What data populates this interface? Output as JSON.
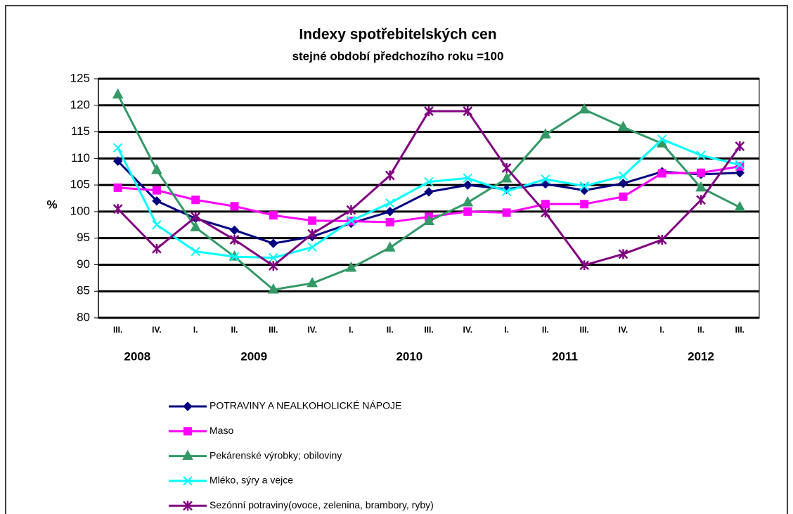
{
  "chart_data": {
    "type": "line",
    "title": "Indexy spotřebitelských  cen",
    "subtitle": "stejné období předchozího roku =100",
    "y_label": "%",
    "categories": [
      "III.",
      "IV.",
      "I.",
      "II.",
      "III.",
      "IV.",
      "I.",
      "II.",
      "III.",
      "IV.",
      "I.",
      "II.",
      "III.",
      "IV.",
      "I.",
      "II.",
      "III."
    ],
    "x_groups": [
      {
        "label": "2008",
        "span": 2
      },
      {
        "label": "2009",
        "span": 4
      },
      {
        "label": "2010",
        "span": 4
      },
      {
        "label": "2011",
        "span": 4
      },
      {
        "label": "2012",
        "span": 3
      }
    ],
    "ylim": [
      80,
      125
    ],
    "yticks": [
      80,
      85,
      90,
      95,
      100,
      105,
      110,
      115,
      120,
      125
    ],
    "grid": true,
    "series": [
      {
        "name": "POTRAVINY A NEALKOHOLICKÉ NÁPOJE",
        "color": "#000080",
        "marker": "diamond",
        "values": [
          109.5,
          102,
          98.7,
          96.5,
          94,
          95.3,
          97.8,
          100,
          103.7,
          105,
          104.2,
          105.2,
          104,
          105.3,
          107.5,
          107,
          107.3
        ]
      },
      {
        "name": "Maso",
        "color": "#ff00ff",
        "marker": "square",
        "values": [
          104.5,
          104,
          102.2,
          101,
          99.3,
          98.3,
          98.2,
          98,
          99,
          100,
          99.8,
          101.4,
          101.4,
          102.8,
          107.2,
          107.3,
          108.5
        ]
      },
      {
        "name": "Pekárenské výrobky; obiloviny",
        "color": "#339966",
        "marker": "triangle",
        "values": [
          122,
          107.8,
          97,
          91.5,
          85.3,
          86.5,
          89.4,
          93.2,
          98.2,
          101.7,
          106.2,
          114.5,
          119.2,
          115.9,
          112.8,
          104.5,
          100.8
        ]
      },
      {
        "name": "Mléko, sýry a vejce",
        "color": "#00ffff",
        "marker": "x",
        "values": [
          112,
          97.5,
          92.5,
          91.5,
          91.3,
          93.3,
          98.3,
          101.6,
          105.6,
          106.3,
          103.8,
          106.1,
          104.8,
          106.7,
          113.6,
          110.6,
          108.8
        ]
      },
      {
        "name": "Sezónní potraviny(ovoce, zelenina, brambory, ryby)",
        "color": "#800080",
        "marker": "star",
        "values": [
          100.5,
          93,
          99,
          94.7,
          89.8,
          95.8,
          100.3,
          106.8,
          118.9,
          118.9,
          108.2,
          99.8,
          89.9,
          92,
          94.7,
          102.2,
          112.3
        ]
      }
    ]
  }
}
